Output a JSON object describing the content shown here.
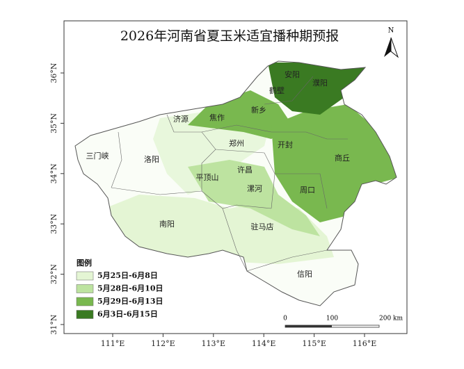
{
  "title": "2026年河南省夏玉米适宜播种期预报",
  "north": "N",
  "cities": [
    "安阳",
    "濮阳",
    "鹤壁",
    "新乡",
    "济源",
    "焦作",
    "郑州",
    "开封",
    "商丘",
    "三门峡",
    "洛阳",
    "许昌",
    "平顶山",
    "漯河",
    "周口",
    "南阳",
    "驻马店",
    "信阳"
  ],
  "lon_labels": [
    "111°E",
    "112°E",
    "113°E",
    "114°E",
    "115°E",
    "116°E"
  ],
  "lat_labels": [
    "36°N",
    "35°N",
    "34°N",
    "33°N",
    "32°N",
    "31°N"
  ],
  "legend": {
    "title": "图例",
    "items": [
      {
        "label": "5月25日-6月8日",
        "color": "#e4f5d4"
      },
      {
        "label": "5月28日-6月10日",
        "color": "#bde3a0"
      },
      {
        "label": "5月29日-6月13日",
        "color": "#79b84f"
      },
      {
        "label": "6月3日-6月15日",
        "color": "#3a7a22"
      }
    ]
  },
  "scale_bar": [
    "0",
    "100",
    "200 km"
  ]
}
